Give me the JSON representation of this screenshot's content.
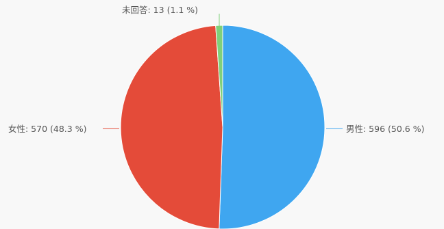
{
  "chart_data": {
    "type": "pie",
    "slices": [
      {
        "name": "男性",
        "value": 596,
        "percent": 50.6,
        "label": "男性: 596 (50.6 %)",
        "color": "#3fa6f0"
      },
      {
        "name": "女性",
        "value": 570,
        "percent": 48.3,
        "label": "女性: 570 (48.3 %)",
        "color": "#e44b39"
      },
      {
        "name": "未回答",
        "value": 13,
        "percent": 1.1,
        "label": "未回答: 13 (1.1 %)",
        "color": "#7fd07a"
      }
    ],
    "start_angle_deg": 0,
    "direction": "clockwise"
  }
}
